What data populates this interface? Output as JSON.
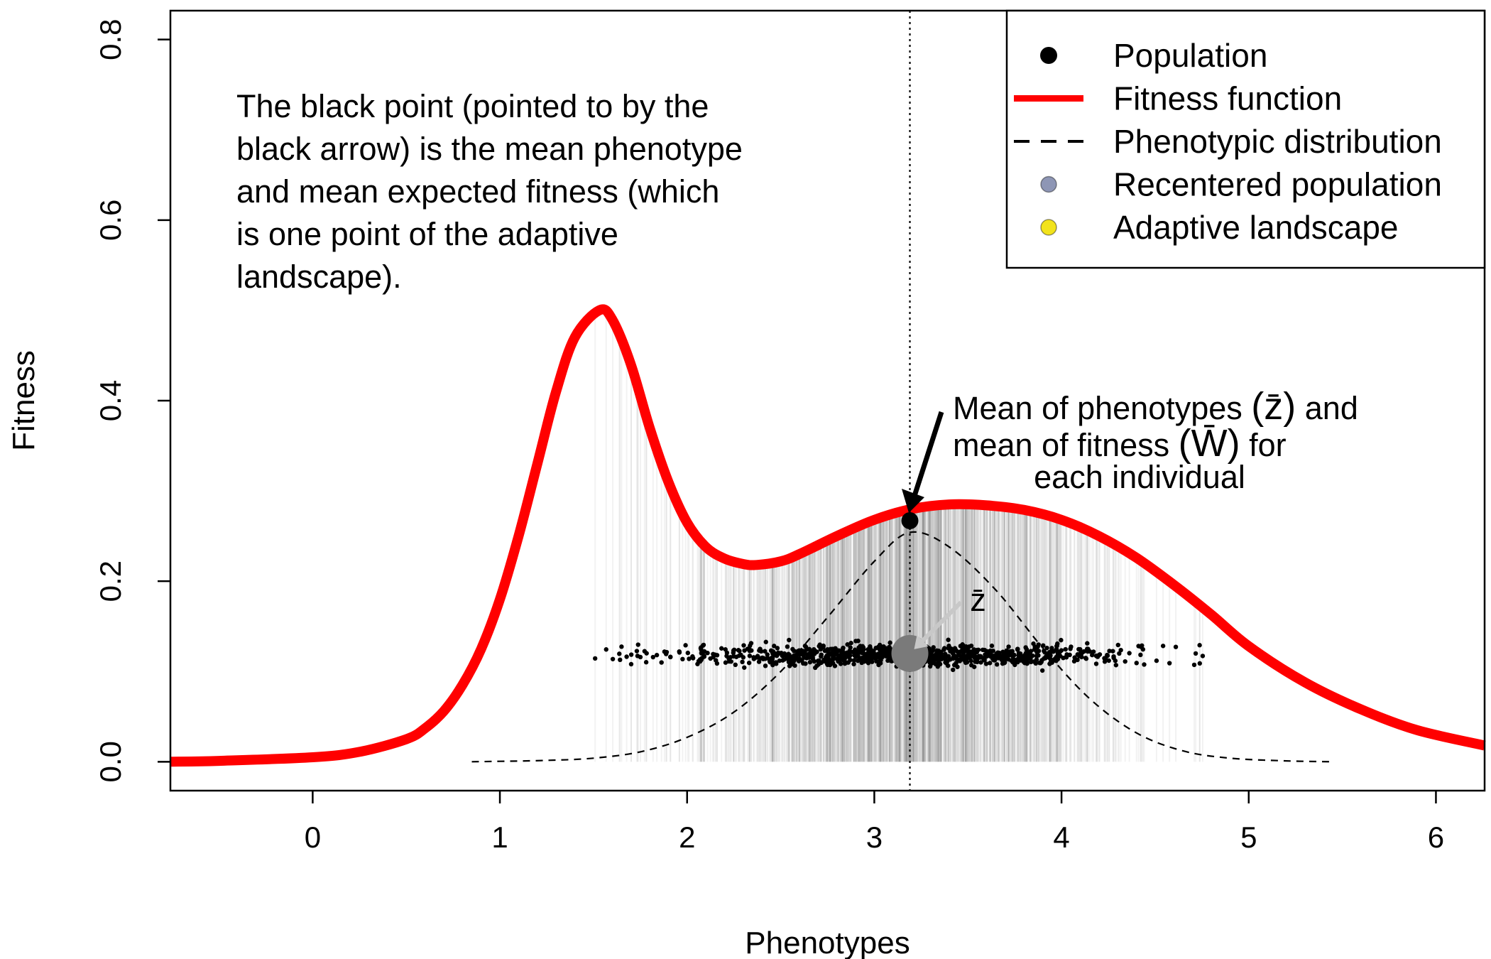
{
  "chart_data": {
    "type": "line",
    "xlabel": "Phenotypes",
    "ylabel": "Fitness",
    "xlim": [
      -0.76,
      6.26
    ],
    "ylim": [
      -0.032,
      0.832
    ],
    "x_ticks": [
      "0",
      "1",
      "2",
      "3",
      "4",
      "5",
      "6"
    ],
    "y_ticks": [
      "0.0",
      "0.2",
      "0.4",
      "0.6",
      "0.8"
    ],
    "grid": false,
    "legend_position": "top-right",
    "legend": [
      {
        "label": "Population",
        "symbol": "filled-circle",
        "color": "#000000"
      },
      {
        "label": "Fitness function",
        "symbol": "line",
        "color": "#ff0000"
      },
      {
        "label": "Phenotypic distribution",
        "symbol": "dashed-line",
        "color": "#000000"
      },
      {
        "label": "Recentered population",
        "symbol": "circle",
        "color": "#8e96b5"
      },
      {
        "label": "Adaptive landscape",
        "symbol": "circle",
        "color": "#f2e31c"
      }
    ],
    "colors": {
      "fitness": "#ff0000",
      "population": "#000000",
      "phenotypic_distribution": "#000000",
      "mean_marker": "#7a7a7a",
      "mean_arrow": "#c8c8c8"
    },
    "series": [
      {
        "name": "Fitness function",
        "x": [
          -0.76,
          -0.5,
          0,
          0.25,
          0.5,
          0.6,
          0.7,
          0.8,
          0.9,
          1.0,
          1.1,
          1.2,
          1.3,
          1.4,
          1.53,
          1.6,
          1.7,
          1.8,
          1.9,
          2.0,
          2.1,
          2.2,
          2.3,
          2.37,
          2.5,
          2.6,
          2.8,
          3.0,
          3.2,
          3.4,
          3.6,
          3.8,
          4.0,
          4.2,
          4.4,
          4.6,
          4.8,
          5.0,
          5.3,
          5.6,
          5.9,
          6.26
        ],
        "values": [
          0.0,
          0.001,
          0.005,
          0.011,
          0.025,
          0.037,
          0.056,
          0.085,
          0.125,
          0.18,
          0.25,
          0.33,
          0.41,
          0.47,
          0.5,
          0.49,
          0.44,
          0.37,
          0.31,
          0.265,
          0.238,
          0.225,
          0.219,
          0.218,
          0.222,
          0.23,
          0.25,
          0.268,
          0.28,
          0.285,
          0.284,
          0.279,
          0.268,
          0.25,
          0.226,
          0.196,
          0.163,
          0.128,
          0.088,
          0.058,
          0.035,
          0.018
        ]
      },
      {
        "name": "Phenotypic distribution",
        "x": [
          0.85,
          1.0,
          1.25,
          1.5,
          1.75,
          2.0,
          2.25,
          2.5,
          2.75,
          3.0,
          3.19,
          3.4,
          3.65,
          3.9,
          4.15,
          4.4,
          4.65,
          4.9,
          5.2,
          5.45
        ],
        "values": [
          0.0,
          0.0005,
          0.0015,
          0.004,
          0.011,
          0.027,
          0.055,
          0.1,
          0.16,
          0.222,
          0.254,
          0.238,
          0.19,
          0.126,
          0.07,
          0.032,
          0.012,
          0.004,
          0.001,
          0.0
        ]
      },
      {
        "name": "Population",
        "x": [
          3.19
        ],
        "values": [
          0.267
        ]
      }
    ],
    "mean_phenotype": 3.19,
    "mean_fitness": 0.267,
    "recentered_population": {
      "mean_x": 3.19,
      "mean_y": 0.12,
      "n": 1000,
      "sd_x": 0.6,
      "min_x": 1.5,
      "max_x": 4.8,
      "y_center": 0.118,
      "sd_y": 0.006
    },
    "annotations": {
      "top_text": [
        "The black point (pointed to by the",
        "black arrow) is the mean phenotype",
        "and mean expected fitness (which",
        "is one point of the adaptive",
        "landscape)."
      ],
      "mean_text": {
        "line1_pre": "Mean of phenotypes ",
        "line1_sym": "(z̄)",
        "line1_post": " and",
        "line2_pre": "mean of fitness ",
        "line2_sym": "(W̄)",
        "line2_post": " for",
        "line3": "each individual"
      },
      "zbar_label": "z̄"
    }
  }
}
